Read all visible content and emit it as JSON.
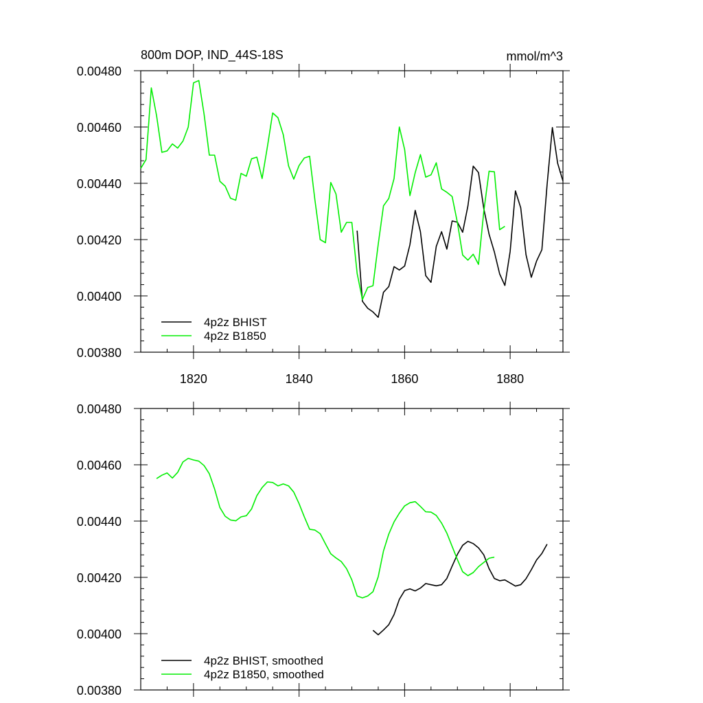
{
  "chart_data": [
    {
      "type": "line",
      "title": "800m DOP, IND_44S-18S",
      "units_label": "mmol/m^3",
      "xlim": [
        1810,
        1890
      ],
      "ylim": [
        0.0038,
        0.0048
      ],
      "xticks": [
        1820,
        1840,
        1860,
        1880
      ],
      "xtick_labels": [
        "1820",
        "1840",
        "1860",
        "1880"
      ],
      "yticks": [
        0.0038,
        0.004,
        0.0042,
        0.0044,
        0.0046,
        0.0048
      ],
      "ytick_labels": [
        "0.00380",
        "0.00400",
        "0.00420",
        "0.00440",
        "0.00460",
        "0.00480"
      ],
      "grid": false,
      "legend_position": "bottom-left",
      "series": [
        {
          "name": "4p2z BHIST",
          "color": "#000000",
          "x": [
            1851,
            1852,
            1853,
            1854,
            1855,
            1856,
            1857,
            1858,
            1859,
            1860,
            1861,
            1862,
            1863,
            1864,
            1865,
            1866,
            1867,
            1868,
            1869,
            1870,
            1871,
            1872,
            1873,
            1874,
            1875,
            1876,
            1877,
            1878,
            1879,
            1880,
            1881,
            1882,
            1883,
            1884,
            1885,
            1886,
            1887,
            1888,
            1889,
            1890
          ],
          "y": [
            0.004232,
            0.003981,
            0.003956,
            0.003943,
            0.003924,
            0.004013,
            0.004033,
            0.004104,
            0.004092,
            0.004106,
            0.004182,
            0.004304,
            0.004228,
            0.004072,
            0.004048,
            0.004176,
            0.004228,
            0.004166,
            0.004266,
            0.004262,
            0.004226,
            0.00432,
            0.004461,
            0.004438,
            0.00431,
            0.004219,
            0.004156,
            0.004078,
            0.004037,
            0.004158,
            0.004373,
            0.004313,
            0.004146,
            0.004066,
            0.004124,
            0.004164,
            0.004395,
            0.004598,
            0.004471,
            0.004408
          ]
        },
        {
          "name": "4p2z B1850",
          "color": "#00ee00",
          "x": [
            1810,
            1811,
            1812,
            1813,
            1814,
            1815,
            1816,
            1817,
            1818,
            1819,
            1820,
            1821,
            1822,
            1823,
            1824,
            1825,
            1826,
            1827,
            1828,
            1829,
            1830,
            1831,
            1832,
            1833,
            1834,
            1835,
            1836,
            1837,
            1838,
            1839,
            1840,
            1841,
            1842,
            1843,
            1844,
            1845,
            1846,
            1847,
            1848,
            1849,
            1850,
            1851,
            1852,
            1853,
            1854,
            1855,
            1856,
            1857,
            1858,
            1859,
            1860,
            1861,
            1862,
            1863,
            1864,
            1865,
            1866,
            1867,
            1868,
            1869,
            1870,
            1871,
            1872,
            1873,
            1874,
            1875,
            1876,
            1877,
            1878,
            1879,
            1880
          ],
          "y": [
            0.004453,
            0.004484,
            0.004739,
            0.00464,
            0.00451,
            0.004515,
            0.00454,
            0.004525,
            0.00455,
            0.0046,
            0.004757,
            0.004765,
            0.004645,
            0.0045,
            0.0045,
            0.004407,
            0.00439,
            0.004347,
            0.00434,
            0.004435,
            0.004425,
            0.004487,
            0.004493,
            0.004417,
            0.00453,
            0.00465,
            0.004633,
            0.004573,
            0.004462,
            0.004415,
            0.004463,
            0.00449,
            0.004496,
            0.004341,
            0.0042,
            0.004189,
            0.004403,
            0.004362,
            0.004226,
            0.004261,
            0.004261,
            0.00408,
            0.003987,
            0.00403,
            0.004036,
            0.004183,
            0.00432,
            0.004346,
            0.004417,
            0.0046,
            0.00452,
            0.004356,
            0.004438,
            0.004502,
            0.004422,
            0.00443,
            0.004473,
            0.00438,
            0.004368,
            0.004353,
            0.00426,
            0.004145,
            0.004127,
            0.004148,
            0.004112,
            0.0043,
            0.004443,
            0.004441,
            0.004235,
            0.004247,
            null
          ]
        }
      ]
    },
    {
      "type": "line",
      "title": "",
      "xlim": [
        1810,
        1890
      ],
      "ylim": [
        0.0038,
        0.0048
      ],
      "xticks": [
        1820,
        1840,
        1860,
        1880
      ],
      "yticks": [
        0.0038,
        0.004,
        0.0042,
        0.0044,
        0.0046,
        0.0048
      ],
      "ytick_labels": [
        "0.00380",
        "0.00400",
        "0.00420",
        "0.00440",
        "0.00460",
        "0.00480"
      ],
      "grid": false,
      "legend_position": "bottom-left",
      "series": [
        {
          "name": "4p2z BHIST, smoothed",
          "color": "#000000",
          "x": [
            1854,
            1855,
            1856,
            1857,
            1858,
            1859,
            1860,
            1861,
            1862,
            1863,
            1864,
            1865,
            1866,
            1867,
            1868,
            1869,
            1870,
            1871,
            1872,
            1873,
            1874,
            1875,
            1876,
            1877,
            1878,
            1879,
            1880,
            1881,
            1882,
            1883,
            1884,
            1885,
            1886,
            1887
          ],
          "y": [
            0.004012,
            0.003996,
            0.004013,
            0.004032,
            0.004068,
            0.004122,
            0.004153,
            0.004159,
            0.004152,
            0.004162,
            0.004178,
            0.004174,
            0.00417,
            0.004174,
            0.004196,
            0.00424,
            0.004282,
            0.004314,
            0.004328,
            0.00432,
            0.004305,
            0.00428,
            0.004231,
            0.004196,
            0.004188,
            0.004191,
            0.00418,
            0.004169,
            0.004174,
            0.004195,
            0.004227,
            0.004262,
            0.004285,
            0.004318
          ]
        },
        {
          "name": "4p2z B1850, smoothed",
          "color": "#00ee00",
          "x": [
            1813,
            1814,
            1815,
            1816,
            1817,
            1818,
            1819,
            1820,
            1821,
            1822,
            1823,
            1824,
            1825,
            1826,
            1827,
            1828,
            1829,
            1830,
            1831,
            1832,
            1833,
            1834,
            1835,
            1836,
            1837,
            1838,
            1839,
            1840,
            1841,
            1842,
            1843,
            1844,
            1845,
            1846,
            1847,
            1848,
            1849,
            1850,
            1851,
            1852,
            1853,
            1854,
            1855,
            1856,
            1857,
            1858,
            1859,
            1860,
            1861,
            1862,
            1863,
            1864,
            1865,
            1866,
            1867,
            1868,
            1869,
            1870,
            1871,
            1872,
            1873,
            1874,
            1875,
            1876,
            1877
          ],
          "y": [
            0.004551,
            0.004563,
            0.004571,
            0.004553,
            0.004573,
            0.00461,
            0.004623,
            0.004617,
            0.004613,
            0.004597,
            0.004568,
            0.004514,
            0.004448,
            0.004417,
            0.004404,
            0.004401,
            0.004415,
            0.004419,
            0.004443,
            0.00449,
            0.004519,
            0.004539,
            0.004537,
            0.004525,
            0.004532,
            0.004525,
            0.004503,
            0.004462,
            0.004415,
            0.004371,
            0.004368,
            0.004355,
            0.004319,
            0.004284,
            0.004269,
            0.004256,
            0.004231,
            0.004191,
            0.004134,
            0.004127,
            0.004134,
            0.004149,
            0.004202,
            0.004294,
            0.004354,
            0.004397,
            0.004428,
            0.004454,
            0.004465,
            0.004469,
            0.004452,
            0.004433,
            0.004432,
            0.00442,
            0.004393,
            0.004357,
            0.00431,
            0.004263,
            0.00422,
            0.004206,
            0.004217,
            0.004238,
            0.004253,
            0.004268,
            0.004272
          ]
        }
      ]
    }
  ]
}
